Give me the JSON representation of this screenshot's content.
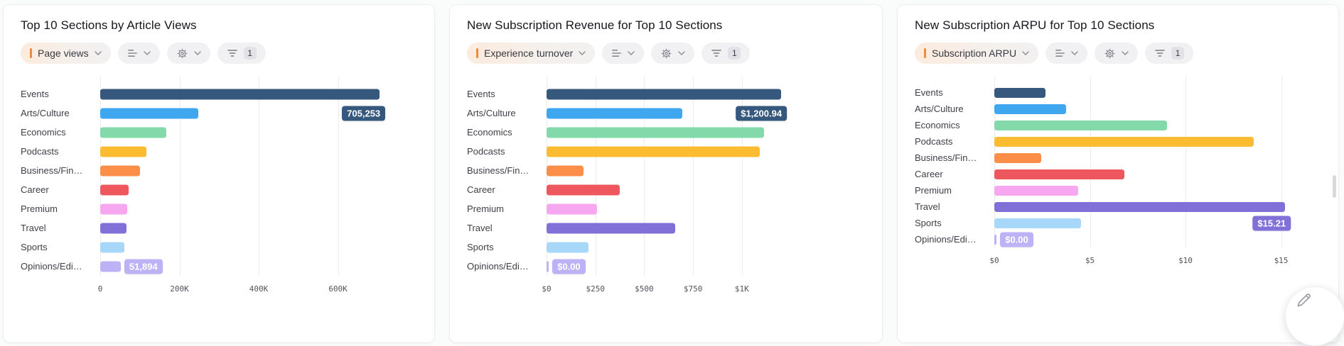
{
  "colors": {
    "accent_orange": "#F08A3D",
    "bar_palette": [
      "#35587C",
      "#3FA7F0",
      "#83D9A9",
      "#FCBC31",
      "#FB8E49",
      "#EE575E",
      "#F6A7EF",
      "#8070D8",
      "#A7D7F9",
      "#BCB2F5"
    ],
    "grid": "#ECECF0",
    "card_background": "#FFFFFF",
    "page_background": "#FAFBFB"
  },
  "cards": [
    {
      "title": "Top 10 Sections by Article Views",
      "metric_selector": {
        "label": "Page views"
      },
      "filter": {
        "count": "1"
      },
      "chart_data": {
        "type": "bar",
        "orientation": "horizontal",
        "title": "Top 10 Sections by Article Views",
        "categories": [
          "Events",
          "Arts/Culture",
          "Economics",
          "Podcasts",
          "Business/Fin…",
          "Career",
          "Premium",
          "Travel",
          "Sports",
          "Opinions/Edi…"
        ],
        "values": [
          705253,
          247000,
          166000,
          117000,
          100000,
          71000,
          68000,
          66000,
          61000,
          51894
        ],
        "axis": {
          "ticks": [
            0,
            200000,
            400000,
            600000
          ],
          "tick_labels": [
            "0",
            "200K",
            "400K",
            "600K"
          ],
          "max": 800000
        },
        "grid": true,
        "callouts": {
          "max": {
            "text": "705,253",
            "anchor_index": 0,
            "color": "#35587C"
          },
          "min": {
            "text": "51,894",
            "anchor_index": 9,
            "color": "#BCB2F5"
          }
        }
      }
    },
    {
      "title": "New Subscription Revenue for Top 10 Sections",
      "metric_selector": {
        "label": "Experience turnover"
      },
      "filter": {
        "count": "1"
      },
      "chart_data": {
        "type": "bar",
        "orientation": "horizontal",
        "title": "New Subscription Revenue for Top 10 Sections",
        "categories": [
          "Events",
          "Arts/Culture",
          "Economics",
          "Podcasts",
          "Business/Fin…",
          "Career",
          "Premium",
          "Travel",
          "Sports",
          "Opinions/Edi…"
        ],
        "values": [
          1200.94,
          695,
          1115,
          1090,
          190,
          375,
          260,
          657,
          213,
          0
        ],
        "axis": {
          "ticks": [
            0,
            250,
            500,
            750,
            1000
          ],
          "tick_labels": [
            "$0",
            "$250",
            "$500",
            "$750",
            "$1K"
          ],
          "max": 1630
        },
        "grid": true,
        "callouts": {
          "max": {
            "text": "$1,200.94",
            "anchor_index": 0,
            "color": "#35587C"
          },
          "min": {
            "text": "$0.00",
            "anchor_index": 9,
            "color": "#BCB2F5"
          }
        }
      }
    },
    {
      "title": "New Subscription ARPU for Top 10 Sections",
      "metric_selector": {
        "label": "Subscription ARPU"
      },
      "filter": {
        "count": "1"
      },
      "chart_data": {
        "type": "bar",
        "orientation": "horizontal",
        "compact": true,
        "title": "New Subscription ARPU for Top 10 Sections",
        "categories": [
          "Events",
          "Arts/Culture",
          "Economics",
          "Podcasts",
          "Business/Fin…",
          "Career",
          "Premium",
          "Travel",
          "Sports",
          "Opinions/Edi…"
        ],
        "values": [
          2.67,
          3.75,
          9.05,
          13.55,
          2.47,
          6.79,
          4.4,
          15.21,
          4.55,
          0
        ],
        "axis": {
          "ticks": [
            0,
            5,
            10,
            15
          ],
          "tick_labels": [
            "$0",
            "$5",
            "$10",
            "$15"
          ],
          "max": 17.1
        },
        "grid": true,
        "callouts": {
          "max": {
            "text": "$15.21",
            "anchor_index": 7,
            "color": "#8070D8"
          },
          "min": {
            "text": "$0.00",
            "anchor_index": 9,
            "color": "#BCB2F5"
          }
        }
      }
    }
  ],
  "floating_button": {
    "icon": "edit-pencil"
  }
}
